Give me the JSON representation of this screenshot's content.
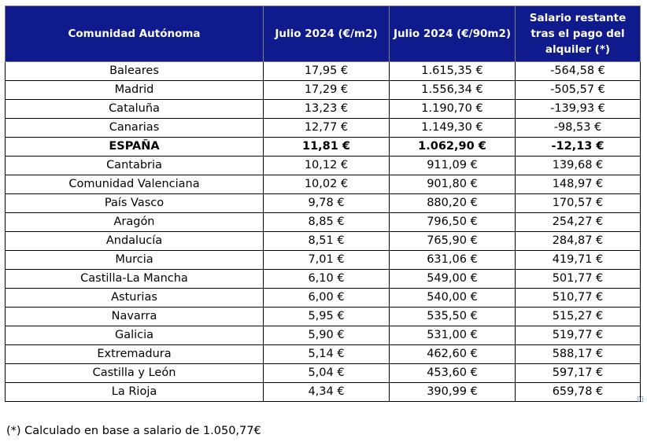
{
  "table": {
    "headers": [
      "Comunidad Autónoma",
      "Julio 2024  (€/m2)",
      "Julio 2024 (€/90m2)",
      "Salario restante tras el pago del alquiler (*)"
    ],
    "rows": [
      {
        "name": "Baleares",
        "eur_m2": "17,95 €",
        "eur_90m2": "1.615,35 €",
        "remaining": "-564,58 €",
        "bold": false
      },
      {
        "name": "Madrid",
        "eur_m2": "17,29 €",
        "eur_90m2": "1.556,34 €",
        "remaining": "-505,57 €",
        "bold": false
      },
      {
        "name": "Cataluña",
        "eur_m2": "13,23 €",
        "eur_90m2": "1.190,70 €",
        "remaining": "-139,93 €",
        "bold": false
      },
      {
        "name": "Canarias",
        "eur_m2": "12,77 €",
        "eur_90m2": "1.149,30 €",
        "remaining": "-98,53 €",
        "bold": false
      },
      {
        "name": "ESPAÑA",
        "eur_m2": "11,81 €",
        "eur_90m2": "1.062,90 €",
        "remaining": "-12,13 €",
        "bold": true
      },
      {
        "name": "Cantabria",
        "eur_m2": "10,12 €",
        "eur_90m2": "911,09 €",
        "remaining": "139,68 €",
        "bold": false
      },
      {
        "name": "Comunidad Valenciana",
        "eur_m2": "10,02 €",
        "eur_90m2": "901,80 €",
        "remaining": "148,97 €",
        "bold": false
      },
      {
        "name": "País Vasco",
        "eur_m2": "9,78 €",
        "eur_90m2": "880,20 €",
        "remaining": "170,57 €",
        "bold": false
      },
      {
        "name": "Aragón",
        "eur_m2": "8,85 €",
        "eur_90m2": "796,50 €",
        "remaining": "254,27 €",
        "bold": false
      },
      {
        "name": "Andalucía",
        "eur_m2": "8,51 €",
        "eur_90m2": "765,90 €",
        "remaining": "284,87 €",
        "bold": false
      },
      {
        "name": "Murcia",
        "eur_m2": "7,01 €",
        "eur_90m2": "631,06 €",
        "remaining": "419,71 €",
        "bold": false
      },
      {
        "name": "Castilla-La Mancha",
        "eur_m2": "6,10 €",
        "eur_90m2": "549,00 €",
        "remaining": "501,77 €",
        "bold": false
      },
      {
        "name": "Asturias",
        "eur_m2": "6,00 €",
        "eur_90m2": "540,00 €",
        "remaining": "510,77 €",
        "bold": false
      },
      {
        "name": "Navarra",
        "eur_m2": "5,95 €",
        "eur_90m2": "535,50 €",
        "remaining": "515,27 €",
        "bold": false
      },
      {
        "name": "Galicia",
        "eur_m2": "5,90 €",
        "eur_90m2": "531,00 €",
        "remaining": "519,77 €",
        "bold": false
      },
      {
        "name": "Extremadura",
        "eur_m2": "5,14 €",
        "eur_90m2": "462,60 €",
        "remaining": "588,17 €",
        "bold": false
      },
      {
        "name": "Castilla y León",
        "eur_m2": "5,04 €",
        "eur_90m2": "453,60 €",
        "remaining": "597,17 €",
        "bold": false
      },
      {
        "name": "La Rioja",
        "eur_m2": "4,34 €",
        "eur_90m2": "390,99 €",
        "remaining": "659,78 €",
        "bold": false
      }
    ]
  },
  "footnote": "(*) Calculado en base a salario de 1.050,77€",
  "colors": {
    "header_bg": "#0f1b8c",
    "header_text": "#ffffff"
  }
}
